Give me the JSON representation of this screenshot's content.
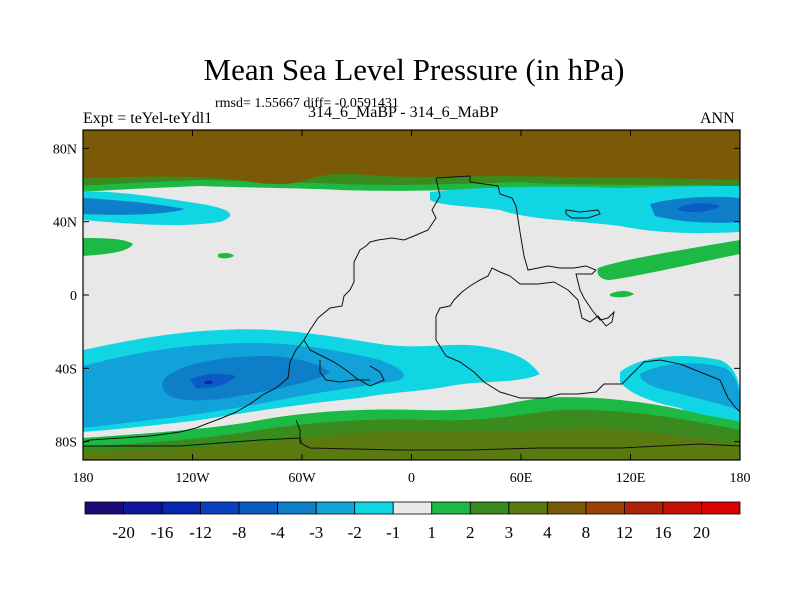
{
  "chart_data": {
    "type": "heatmap",
    "title": "Mean Sea Level Pressure (in hPa)",
    "stats_text": "rmsd= 1.55667 diff= -0.0591431",
    "left_label": "Expt = teYel-teYdl1",
    "center_label": "314_6_MaBP - 314_6_MaBP",
    "right_label": "ANN",
    "xlabel": "",
    "ylabel": "",
    "xlim": [
      -180,
      180
    ],
    "ylim": [
      -90,
      90
    ],
    "x_ticks": [
      {
        "value": -180,
        "label": "180"
      },
      {
        "value": -120,
        "label": "120W"
      },
      {
        "value": -60,
        "label": "60W"
      },
      {
        "value": 0,
        "label": "0"
      },
      {
        "value": 60,
        "label": "60E"
      },
      {
        "value": 120,
        "label": "120E"
      },
      {
        "value": 180,
        "label": "180"
      }
    ],
    "y_ticks": [
      {
        "value": 80,
        "label": "80N"
      },
      {
        "value": 40,
        "label": "40N"
      },
      {
        "value": 0,
        "label": "0"
      },
      {
        "value": -40,
        "label": "40S"
      },
      {
        "value": -80,
        "label": "80S"
      }
    ],
    "colorbar": {
      "labels": [
        "-20",
        "-16",
        "-12",
        "-8",
        "-4",
        "-3",
        "-2",
        "-1",
        "1",
        "2",
        "3",
        "4",
        "8",
        "12",
        "16",
        "20"
      ],
      "colors": [
        "#1c0b78",
        "#10179a",
        "#0627b2",
        "#0a3fc0",
        "#0a5cc4",
        "#0e7ec8",
        "#10a2d8",
        "#10d6e4",
        "#e8e8e8",
        "#1cba45",
        "#3a8a1e",
        "#5a7a10",
        "#7a5a06",
        "#9c4008",
        "#b02208",
        "#c61006",
        "#dc0000"
      ]
    },
    "regions": [
      {
        "level": "4 to 8",
        "color": "#7a5a06",
        "lon": [
          -180,
          180
        ],
        "lat": [
          68,
          90
        ],
        "description": "Arctic positive anomaly band"
      },
      {
        "level": "2 to 3",
        "color": "#3a8a1e",
        "lon": [
          -180,
          180
        ],
        "lat": [
          63,
          70
        ]
      },
      {
        "level": "1 to 2",
        "color": "#1cba45",
        "lon": [
          -180,
          180
        ],
        "lat": [
          60,
          66
        ]
      },
      {
        "level": "-2 to -1",
        "color": "#10d6e4",
        "lon": [
          -180,
          -120
        ],
        "lat": [
          35,
          52
        ]
      },
      {
        "level": "-2 to -1",
        "color": "#10d6e4",
        "lon": [
          10,
          180
        ],
        "lat": [
          34,
          58
        ]
      },
      {
        "level": "-4 to -3",
        "color": "#0e7ec8",
        "lon": [
          135,
          175
        ],
        "lat": [
          40,
          52
        ]
      },
      {
        "level": "1 to 2",
        "color": "#1cba45",
        "lon": [
          -180,
          -160
        ],
        "lat": [
          12,
          27
        ]
      },
      {
        "level": "1 to 2",
        "color": "#1cba45",
        "lon": [
          90,
          180
        ],
        "lat": [
          14,
          34
        ]
      },
      {
        "level": "1 to 2",
        "color": "#1cba45",
        "lon": [
          110,
          120
        ],
        "lat": [
          -2,
          3
        ]
      },
      {
        "level": "-2 to -1",
        "color": "#10d6e4",
        "lon": [
          -180,
          20
        ],
        "lat": [
          -70,
          -20
        ]
      },
      {
        "level": "-3 to -2",
        "color": "#10a2d8",
        "lon": [
          -180,
          -10
        ],
        "lat": [
          -65,
          -32
        ]
      },
      {
        "level": "-4 to -3",
        "color": "#0e7ec8",
        "lon": [
          -145,
          -60
        ],
        "lat": [
          -55,
          -40
        ]
      },
      {
        "level": "-8 to -4",
        "color": "#0a5cc4",
        "lon": [
          -125,
          -95
        ],
        "lat": [
          -50,
          -43
        ]
      },
      {
        "level": "-2 to -1",
        "color": "#10d6e4",
        "lon": [
          60,
          135
        ],
        "lat": [
          -44,
          -32
        ]
      },
      {
        "level": "-3 to -2",
        "color": "#10a2d8",
        "lon": [
          120,
          180
        ],
        "lat": [
          -70,
          -40
        ]
      },
      {
        "level": "1 to 2",
        "color": "#1cba45",
        "lon": [
          -180,
          180
        ],
        "lat": [
          -80,
          -58
        ]
      },
      {
        "level": "2 to 3",
        "color": "#3a8a1e",
        "lon": [
          -180,
          180
        ],
        "lat": [
          -85,
          -70
        ]
      },
      {
        "level": "3 to 4",
        "color": "#5a7a10",
        "lon": [
          -180,
          180
        ],
        "lat": [
          -90,
          -76
        ]
      }
    ]
  }
}
